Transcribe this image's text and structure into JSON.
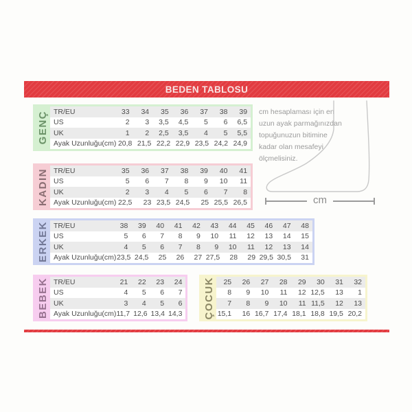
{
  "header": {
    "title": "BEDEN TABLOSU"
  },
  "measure_note": {
    "lines": [
      "cm hesaplaması için en",
      "uzun ayak parmağınızdan",
      "topuğunuzun bitimine",
      "kadar olan mesafeyi",
      "ölçmelisiniz."
    ],
    "unit_label": "cm"
  },
  "colors": {
    "accent_red": "#e23b40",
    "row_alt_gray": "#ebebeb",
    "table_text": "#4c4c4c",
    "note_text": "#9b9b9b"
  },
  "chart_data": {
    "type": "table",
    "title": "BEDEN TABLOSU",
    "tables": [
      {
        "id": "genc",
        "section": "GENÇ",
        "panel_color": "#d5f0d1",
        "label_color": "#4f7a4c",
        "rows": [
          {
            "label": "TR/EU",
            "values": [
              "33",
              "34",
              "35",
              "36",
              "37",
              "38",
              "39"
            ]
          },
          {
            "label": "US",
            "values": [
              "2",
              "3",
              "3,5",
              "4,5",
              "5",
              "6",
              "6,5"
            ]
          },
          {
            "label": "UK",
            "values": [
              "1",
              "2",
              "2,5",
              "3,5",
              "4",
              "5",
              "5,5"
            ]
          },
          {
            "label": "Ayak Uzunluğu(cm)",
            "values": [
              "20,8",
              "21,5",
              "22,2",
              "22,9",
              "23,5",
              "24,2",
              "24,9"
            ]
          }
        ]
      },
      {
        "id": "kadin",
        "section": "KADIN",
        "panel_color": "#f6cdd4",
        "label_color": "#6e5458",
        "rows": [
          {
            "label": "TR/EU",
            "values": [
              "35",
              "36",
              "37",
              "38",
              "39",
              "40",
              "41"
            ]
          },
          {
            "label": "US",
            "values": [
              "5",
              "6",
              "7",
              "8",
              "9",
              "10",
              "11"
            ]
          },
          {
            "label": "UK",
            "values": [
              "2",
              "3",
              "4",
              "5",
              "6",
              "7",
              "8"
            ]
          },
          {
            "label": "Ayak Uzunluğu(cm)",
            "values": [
              "22,5",
              "23",
              "23,5",
              "24,5",
              "25",
              "25,5",
              "26,5"
            ]
          }
        ]
      },
      {
        "id": "erkek",
        "section": "ERKEK",
        "panel_color": "#cbd3f2",
        "label_color": "#5a5f7d",
        "rows": [
          {
            "label": "TR/EU",
            "values": [
              "38",
              "39",
              "40",
              "41",
              "42",
              "43",
              "44",
              "45",
              "46",
              "47",
              "48"
            ]
          },
          {
            "label": "US",
            "values": [
              "5",
              "6",
              "7",
              "8",
              "9",
              "10",
              "11",
              "12",
              "13",
              "14",
              "15"
            ]
          },
          {
            "label": "UK",
            "values": [
              "4",
              "5",
              "6",
              "7",
              "8",
              "9",
              "10",
              "11",
              "12",
              "13",
              "14"
            ]
          },
          {
            "label": "Ayak Uzunluğu(cm)",
            "values": [
              "23,5",
              "24,5",
              "25",
              "26",
              "27",
              "27,5",
              "28",
              "29",
              "29,5",
              "30,5",
              "31"
            ]
          }
        ]
      },
      {
        "id": "bebek",
        "section": "BEBEK",
        "panel_color": "#f7cdef",
        "label_color": "#7c5674",
        "rows": [
          {
            "label": "TR/EU",
            "values": [
              "21",
              "22",
              "23",
              "24"
            ]
          },
          {
            "label": "US",
            "values": [
              "4",
              "5",
              "6",
              "7"
            ]
          },
          {
            "label": "UK",
            "values": [
              "3",
              "4",
              "5",
              "6"
            ]
          },
          {
            "label": "Ayak Uzunluğu(cm)",
            "values": [
              "11,7",
              "12,6",
              "13,4",
              "14,3"
            ]
          }
        ]
      },
      {
        "id": "cocuk",
        "section": "ÇOCUK",
        "panel_color": "#f7f4cd",
        "label_color": "#6f6b4a",
        "rows": [
          {
            "label": "",
            "values": [
              "25",
              "26",
              "27",
              "28",
              "29",
              "30",
              "31",
              "32"
            ]
          },
          {
            "label": "",
            "values": [
              "8",
              "9",
              "10",
              "11",
              "12",
              "12,5",
              "13",
              "1"
            ]
          },
          {
            "label": "",
            "values": [
              "7",
              "8",
              "9",
              "10",
              "11",
              "11,5",
              "12",
              "13"
            ]
          },
          {
            "label": "",
            "values": [
              "15,1",
              "16",
              "16,7",
              "17,4",
              "18,1",
              "18,8",
              "19,5",
              "20,2"
            ]
          }
        ]
      }
    ]
  }
}
